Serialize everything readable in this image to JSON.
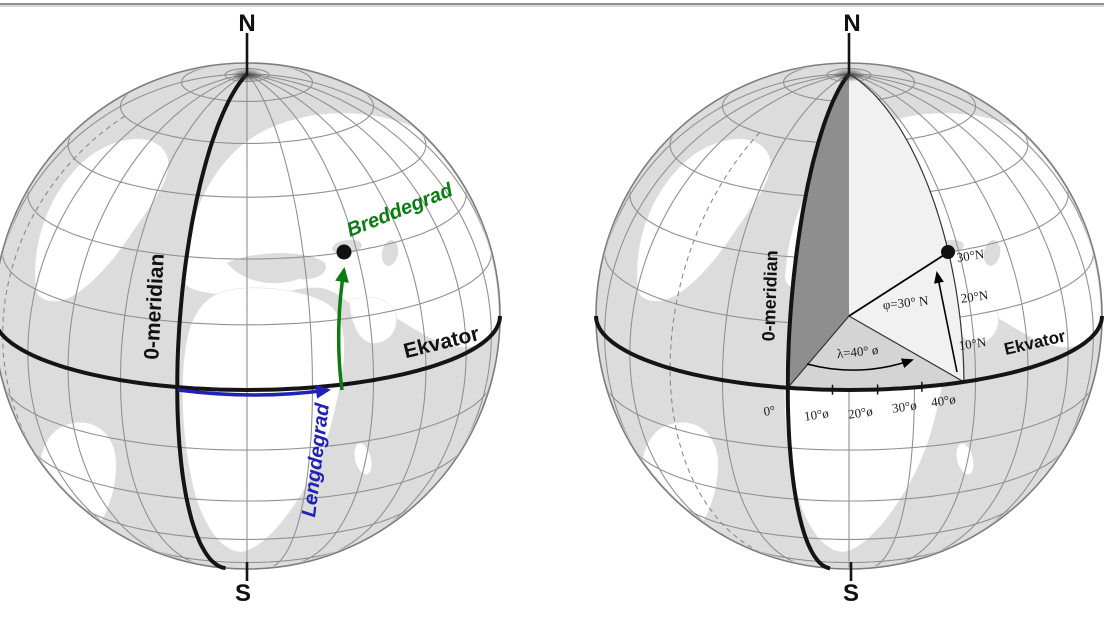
{
  "page": {
    "background": "#ffffff",
    "top_border_color": "#8f8f8f"
  },
  "left_globe": {
    "north_pole_label": "N",
    "south_pole_label": "S",
    "prime_meridian_label": "0-meridian",
    "equator_label": "Ekvator",
    "latitude_arrow_label": "Breddegrad",
    "longitude_arrow_label": "Lengdegrad",
    "latitude_color": "#0b7c12",
    "longitude_color": "#2121b8"
  },
  "right_globe": {
    "north_pole_label": "N",
    "south_pole_label": "S",
    "prime_meridian_label": "0-meridian",
    "equator_label": "Ekvator",
    "phi_angle_label": "φ=30° N",
    "lambda_angle_label": "λ=40° ø",
    "latitude_ticks": [
      "30°N",
      "20°N",
      "10°N"
    ],
    "longitude_ticks": [
      "0°",
      "10°ø",
      "20°ø",
      "30°ø",
      "40°ø"
    ]
  }
}
